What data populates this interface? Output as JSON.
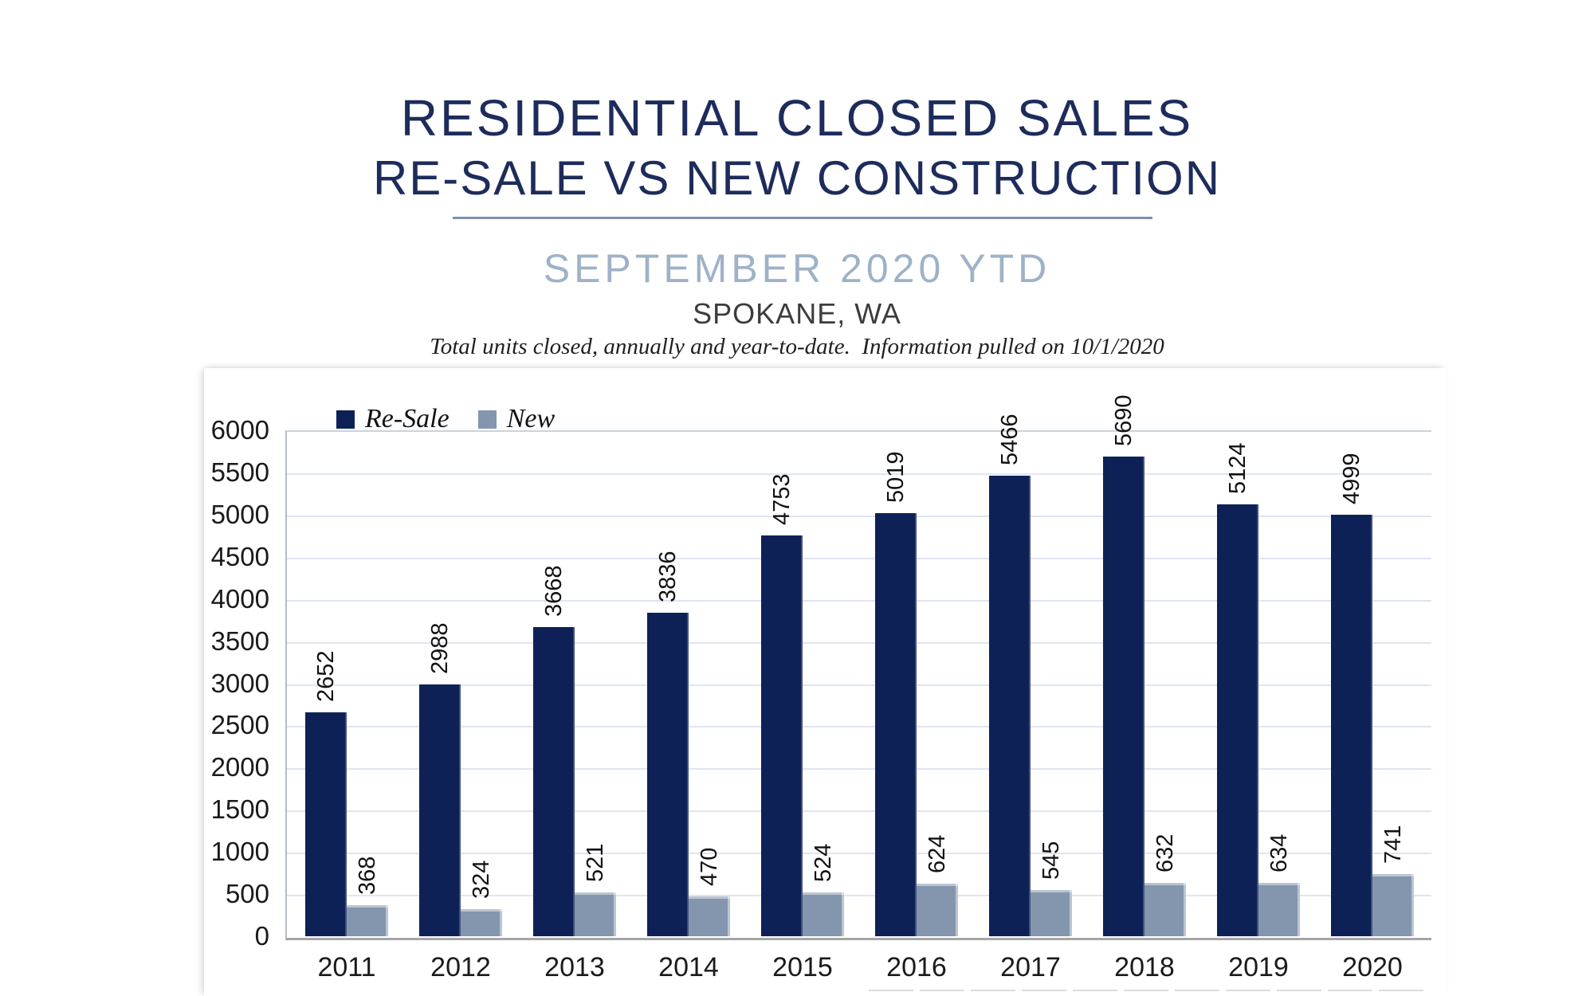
{
  "header": {
    "title_line1": "RESIDENTIAL CLOSED SALES",
    "title_line2": "RE-SALE VS NEW CONSTRUCTION",
    "subtitle": "SEPTEMBER 2020 YTD",
    "location": "SPOKANE, WA",
    "note": "Total units closed, annually and year-to-date.  Information pulled on 10/1/2020"
  },
  "colors": {
    "title_navy": "#1d2c5b",
    "subtitle_blue": "#9eb2c7",
    "divider": "#7d8fae",
    "resale_bar": "#0d2157",
    "new_bar": "#8496ae",
    "gridline": "#dfe5f2",
    "plot_frame": "#ccd2dc",
    "axis_line": "#a6a6a6",
    "label_text": "#111111"
  },
  "chart_data": {
    "type": "bar",
    "title": "RESIDENTIAL CLOSED SALES — RE-SALE VS NEW CONSTRUCTION",
    "subtitle": "SEPTEMBER 2020 YTD — SPOKANE, WA",
    "xlabel": "",
    "ylabel": "",
    "categories": [
      "2011",
      "2012",
      "2013",
      "2014",
      "2015",
      "2016",
      "2017",
      "2018",
      "2019",
      "2020"
    ],
    "series": [
      {
        "name": "Re-Sale",
        "color_key": "resale_bar",
        "values": [
          2652,
          2988,
          3668,
          3836,
          4753,
          5019,
          5466,
          5690,
          5124,
          4999
        ]
      },
      {
        "name": "New",
        "color_key": "new_bar",
        "values": [
          368,
          324,
          521,
          470,
          524,
          624,
          545,
          632,
          634,
          741
        ]
      }
    ],
    "ylim": [
      0,
      6000
    ],
    "ytick_step": 500,
    "grid": true,
    "data_labels": "rotated-90-above-bars",
    "legend_position": "top-left-inside"
  },
  "legend": {
    "items": [
      {
        "label": "Re-Sale",
        "swatch_color": "#0d2157"
      },
      {
        "label": "New",
        "swatch_color": "#8496ae"
      }
    ]
  }
}
